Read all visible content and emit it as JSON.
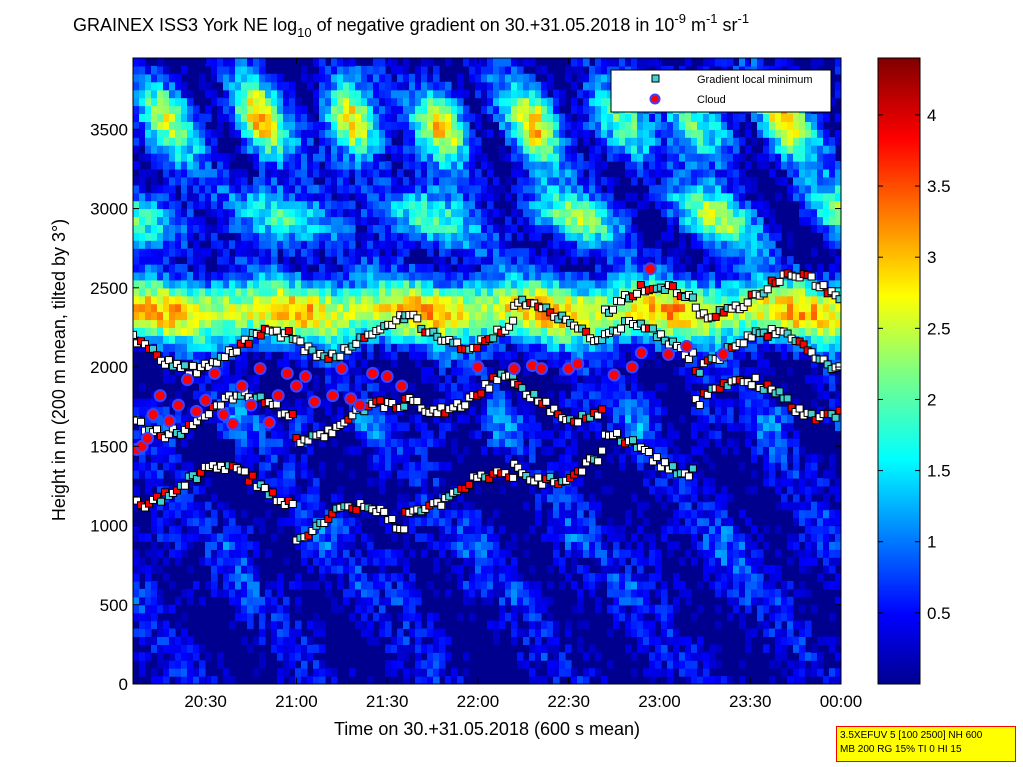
{
  "chart_data": {
    "type": "heatmap",
    "title": {
      "prefix": "GRAINEX ISS3 York NE log",
      "log_base": "10",
      "middle": " of negative gradient on 30.+31.05.2018 in 10",
      "exp1": "-9",
      "unit_m": " m",
      "exp2": "-1",
      "unit_sr": " sr",
      "exp3": "-1"
    },
    "xlabel": "Time on 30.+31.05.2018 (600 s mean)",
    "ylabel": "Height in m (200 m mean, tilted by 3°)",
    "x_ticks": [
      "20:30",
      "21:00",
      "21:30",
      "22:00",
      "22:30",
      "23:00",
      "23:30",
      "00:00"
    ],
    "x_tick_hours": [
      20.5,
      21.0,
      21.5,
      22.0,
      22.5,
      23.0,
      23.5,
      24.0
    ],
    "xlim_hours": [
      20.1,
      24.0
    ],
    "y_ticks": [
      "0",
      "500",
      "1000",
      "1500",
      "2000",
      "2500",
      "3000",
      "3500"
    ],
    "y_tick_values": [
      0,
      500,
      1000,
      1500,
      2000,
      2500,
      3000,
      3500
    ],
    "ylim": [
      0,
      3950
    ],
    "colorbar": {
      "ticks": [
        "0.5",
        "1",
        "1.5",
        "2",
        "2.5",
        "3",
        "3.5",
        "4"
      ],
      "tick_values": [
        0.5,
        1,
        1.5,
        2,
        2.5,
        3,
        3.5,
        4
      ],
      "range": [
        0,
        4.4
      ],
      "colormap": "jet"
    },
    "legend": {
      "position": "top-right",
      "entries": [
        {
          "label": "Gradient local minimum",
          "marker": "square",
          "color": "#40d0d0"
        },
        {
          "label": "Cloud",
          "marker": "circle",
          "color": "#ff0000",
          "edge": "#4040ff"
        }
      ]
    },
    "cloud_base_points": [
      [
        20.12,
        1480
      ],
      [
        20.15,
        1500
      ],
      [
        20.18,
        1550
      ],
      [
        20.21,
        1700
      ],
      [
        20.25,
        1820
      ],
      [
        20.3,
        1660
      ],
      [
        20.35,
        1760
      ],
      [
        20.4,
        1920
      ],
      [
        20.45,
        1720
      ],
      [
        20.5,
        1790
      ],
      [
        20.55,
        1960
      ],
      [
        20.6,
        1700
      ],
      [
        20.65,
        1640
      ],
      [
        20.7,
        1880
      ],
      [
        20.75,
        1760
      ],
      [
        20.8,
        1990
      ],
      [
        20.85,
        1650
      ],
      [
        20.9,
        1820
      ],
      [
        20.95,
        1960
      ],
      [
        21.0,
        1880
      ],
      [
        21.05,
        1940
      ],
      [
        21.1,
        1780
      ],
      [
        21.2,
        1820
      ],
      [
        21.25,
        1990
      ],
      [
        21.3,
        1800
      ],
      [
        21.35,
        1760
      ],
      [
        21.42,
        1960
      ],
      [
        21.5,
        1940
      ],
      [
        21.58,
        1880
      ],
      [
        22.0,
        2000
      ],
      [
        22.2,
        1990
      ],
      [
        22.3,
        2010
      ],
      [
        22.35,
        1990
      ],
      [
        22.5,
        1990
      ],
      [
        22.55,
        2020
      ],
      [
        22.75,
        1950
      ],
      [
        22.85,
        2000
      ],
      [
        22.9,
        2090
      ],
      [
        22.95,
        2620
      ],
      [
        23.05,
        2080
      ],
      [
        23.15,
        2130
      ],
      [
        23.35,
        2080
      ]
    ],
    "gradient_minimum_bands": [
      {
        "heights": [
          2100,
          1700,
          1250
        ],
        "x_range": [
          20.1,
          21.0
        ]
      },
      {
        "heights": [
          2200,
          1650,
          1000
        ],
        "x_range": [
          21.0,
          21.6
        ]
      },
      {
        "heights": [
          2250,
          1850,
          1200
        ],
        "x_range": [
          21.6,
          22.2
        ]
      },
      {
        "heights": [
          2300,
          1800,
          1400
        ],
        "x_range": [
          22.2,
          22.7
        ]
      },
      {
        "heights": [
          2400,
          2150,
          1450
        ],
        "x_range": [
          22.7,
          23.2
        ]
      },
      {
        "heights": [
          2450,
          2100,
          1800
        ],
        "x_range": [
          23.2,
          24.0
        ]
      }
    ]
  },
  "info_box": {
    "line1": "3.5XEFUV 5 [100 2500] NH 600",
    "line2": "MB 200 RG 15% TI 0 HI 15"
  }
}
